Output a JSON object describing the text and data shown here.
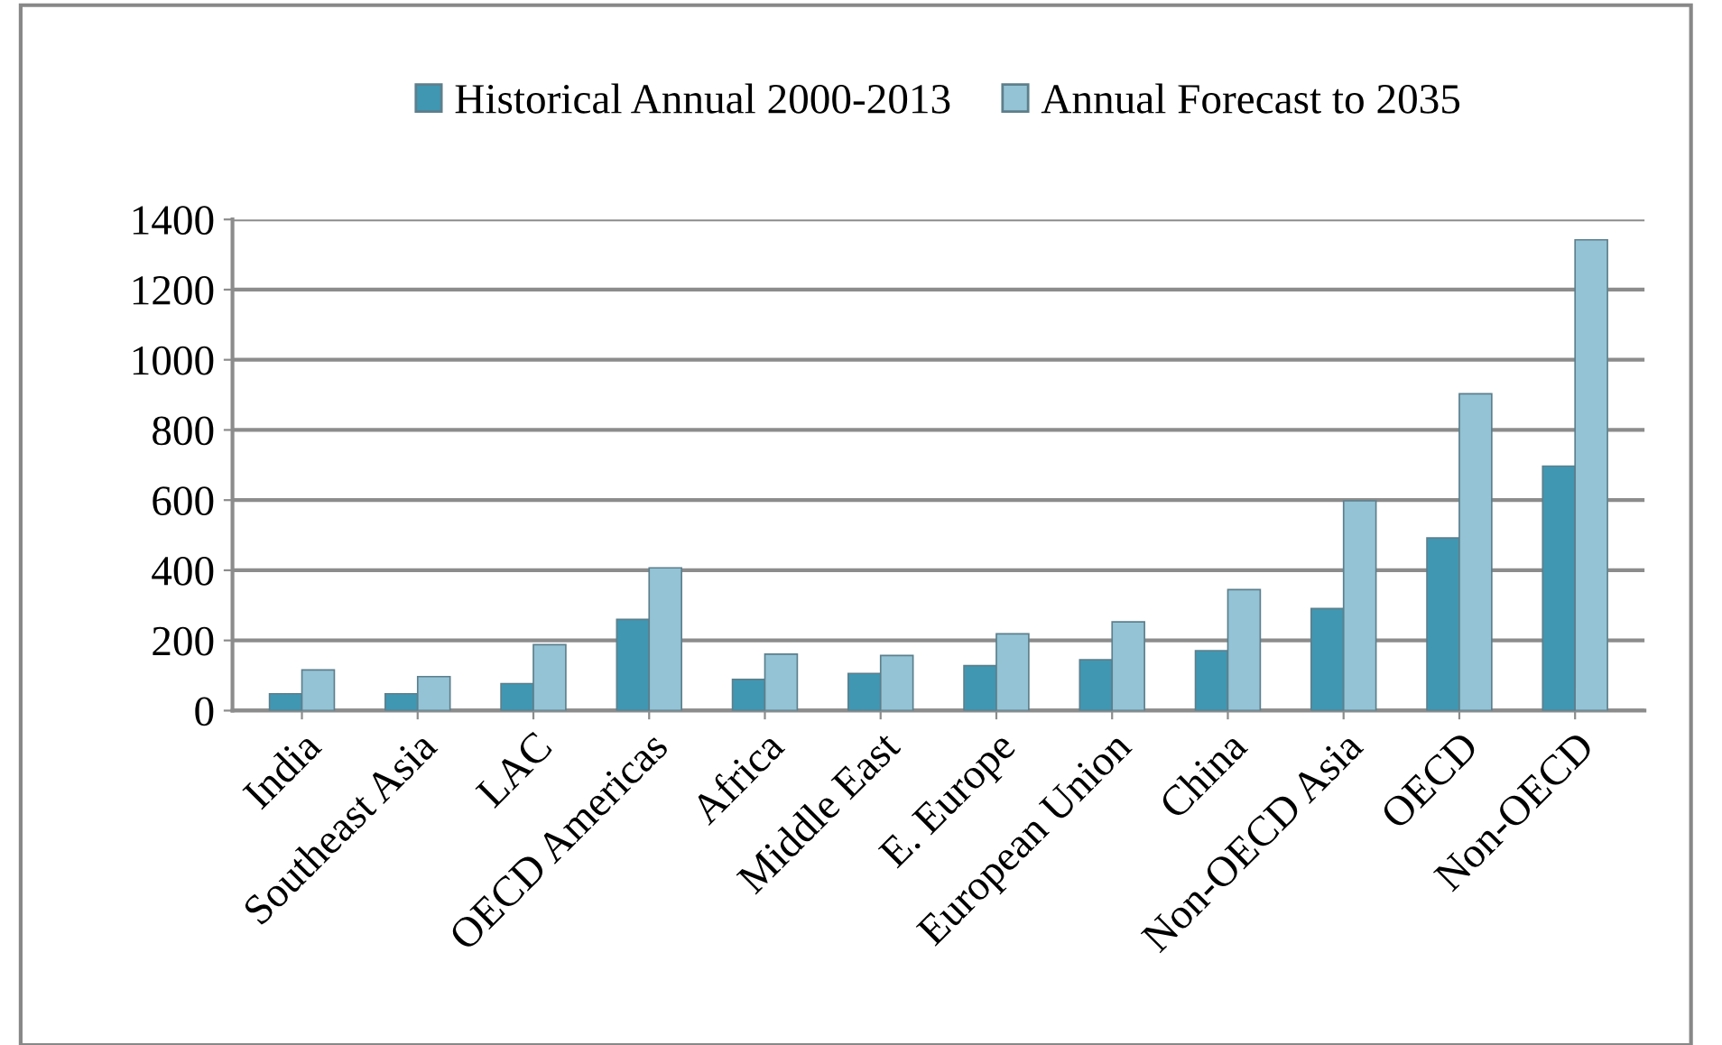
{
  "chart_data": {
    "type": "bar",
    "categories": [
      "India",
      "Southeast Asia",
      "LAC",
      "OECD Americas",
      "Africa",
      "Middle East",
      "E. Europe",
      "European Union",
      "China",
      "Non-OECD Asia",
      "OECD",
      "Non-OECD"
    ],
    "series": [
      {
        "name": "Historical Annual 2000-2013",
        "color": "#4097b2",
        "values": [
          48,
          48,
          77,
          260,
          89,
          106,
          128,
          145,
          171,
          291,
          492,
          697
        ]
      },
      {
        "name": "Annual Forecast to 2035",
        "color": "#93c3d5",
        "values": [
          116,
          97,
          188,
          407,
          161,
          157,
          219,
          253,
          345,
          598,
          903,
          1342
        ]
      }
    ],
    "ylim": [
      0,
      1400
    ],
    "yticks": [
      0,
      200,
      400,
      600,
      800,
      1000,
      1200,
      1400
    ],
    "grid": "y",
    "legend": "top"
  }
}
